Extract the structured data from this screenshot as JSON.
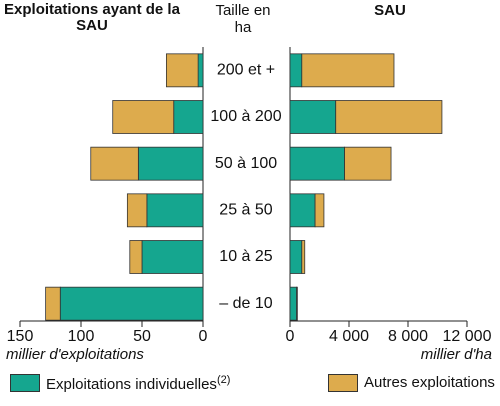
{
  "chart_data": [
    {
      "type": "bar",
      "orientation": "horizontal",
      "stacked": true,
      "title": "Exploitations ayant de la SAU",
      "category_label": "Taille en ha",
      "categories": [
        "200 et +",
        "100 à 200",
        "50 à 100",
        "25 à 50",
        "10 à 25",
        "– de 10"
      ],
      "series": [
        {
          "name": "Exploitations individuelles",
          "note": "(2)",
          "color": "#15a68f",
          "values": [
            4,
            24,
            53,
            46,
            50,
            117
          ]
        },
        {
          "name": "Autres exploitations",
          "color": "#ddab4d",
          "values": [
            26,
            50,
            39,
            16,
            10,
            12
          ]
        }
      ],
      "xlim": [
        150,
        0
      ],
      "xticks": [
        150,
        100,
        50,
        0
      ],
      "xlabel": "millier d'exploitations"
    },
    {
      "type": "bar",
      "orientation": "horizontal",
      "stacked": true,
      "title": "SAU",
      "series": [
        {
          "color": "#15a68f",
          "values": [
            800,
            3100,
            3700,
            1700,
            800,
            450
          ]
        },
        {
          "color": "#ddab4d",
          "values": [
            6250,
            7200,
            3150,
            600,
            200,
            50
          ]
        }
      ],
      "xlim": [
        0,
        12000
      ],
      "xticks": [
        0,
        {
          "value": 4000,
          "label": "4 000"
        },
        {
          "value": 8000,
          "label": "8 000"
        },
        {
          "value": 12000,
          "label": "12 000"
        }
      ],
      "xlabel": "millier d'ha"
    }
  ]
}
